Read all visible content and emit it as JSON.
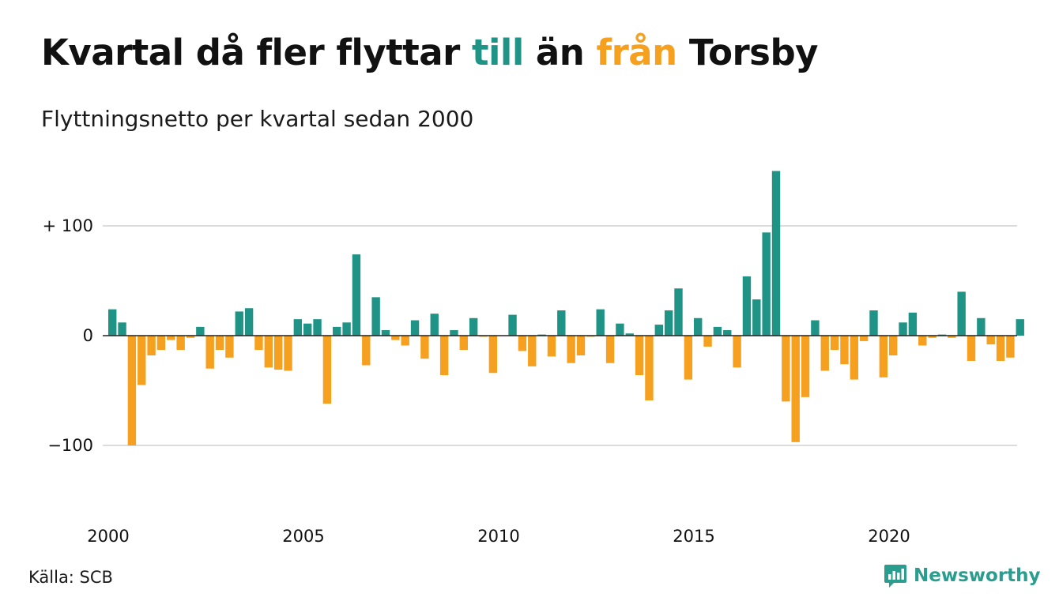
{
  "title": {
    "part1": "Kvartal då fler flyttar ",
    "till": "till",
    "part2": " än ",
    "fran": "från",
    "part3": " Torsby"
  },
  "subtitle": "Flyttningsnetto per kvartal sedan 2000",
  "source": "Källa: SCB",
  "brand": "Newsworthy",
  "colors": {
    "positive": "#1f9486",
    "negative": "#f5a11f",
    "grid": "#dcdcdc",
    "brand": "#2a9d8f"
  },
  "chart_data": {
    "type": "bar",
    "x_start": "2000 Q1",
    "quarters_per_year": 4,
    "ylim": [
      -100,
      150
    ],
    "y_ticks": [
      {
        "value": 100,
        "label": "+ 100"
      },
      {
        "value": 0,
        "label": "0"
      },
      {
        "value": -100,
        "label": "−100"
      }
    ],
    "x_ticks": [
      "2000",
      "2005",
      "2010",
      "2015",
      "2020"
    ],
    "values": [
      24,
      12,
      -100,
      -45,
      -18,
      -13,
      -4,
      -13,
      -2,
      8,
      -30,
      -13,
      -20,
      22,
      25,
      -13,
      -29,
      -31,
      -32,
      15,
      11,
      15,
      -62,
      8,
      12,
      74,
      -27,
      35,
      5,
      -4,
      -9,
      14,
      -21,
      20,
      -36,
      5,
      -13,
      16,
      -1,
      -34,
      0,
      19,
      -14,
      -28,
      1,
      -19,
      23,
      -25,
      -18,
      -1,
      24,
      -25,
      11,
      2,
      -36,
      -59,
      10,
      23,
      43,
      -40,
      16,
      -10,
      8,
      5,
      -29,
      54,
      33,
      94,
      150,
      -60,
      -97,
      -56,
      14,
      -32,
      -13,
      -26,
      -40,
      -5,
      23,
      -38,
      -18,
      12,
      21,
      -9,
      -2,
      1,
      -2,
      40,
      -23,
      16,
      -8,
      -23,
      -20,
      15
    ]
  }
}
